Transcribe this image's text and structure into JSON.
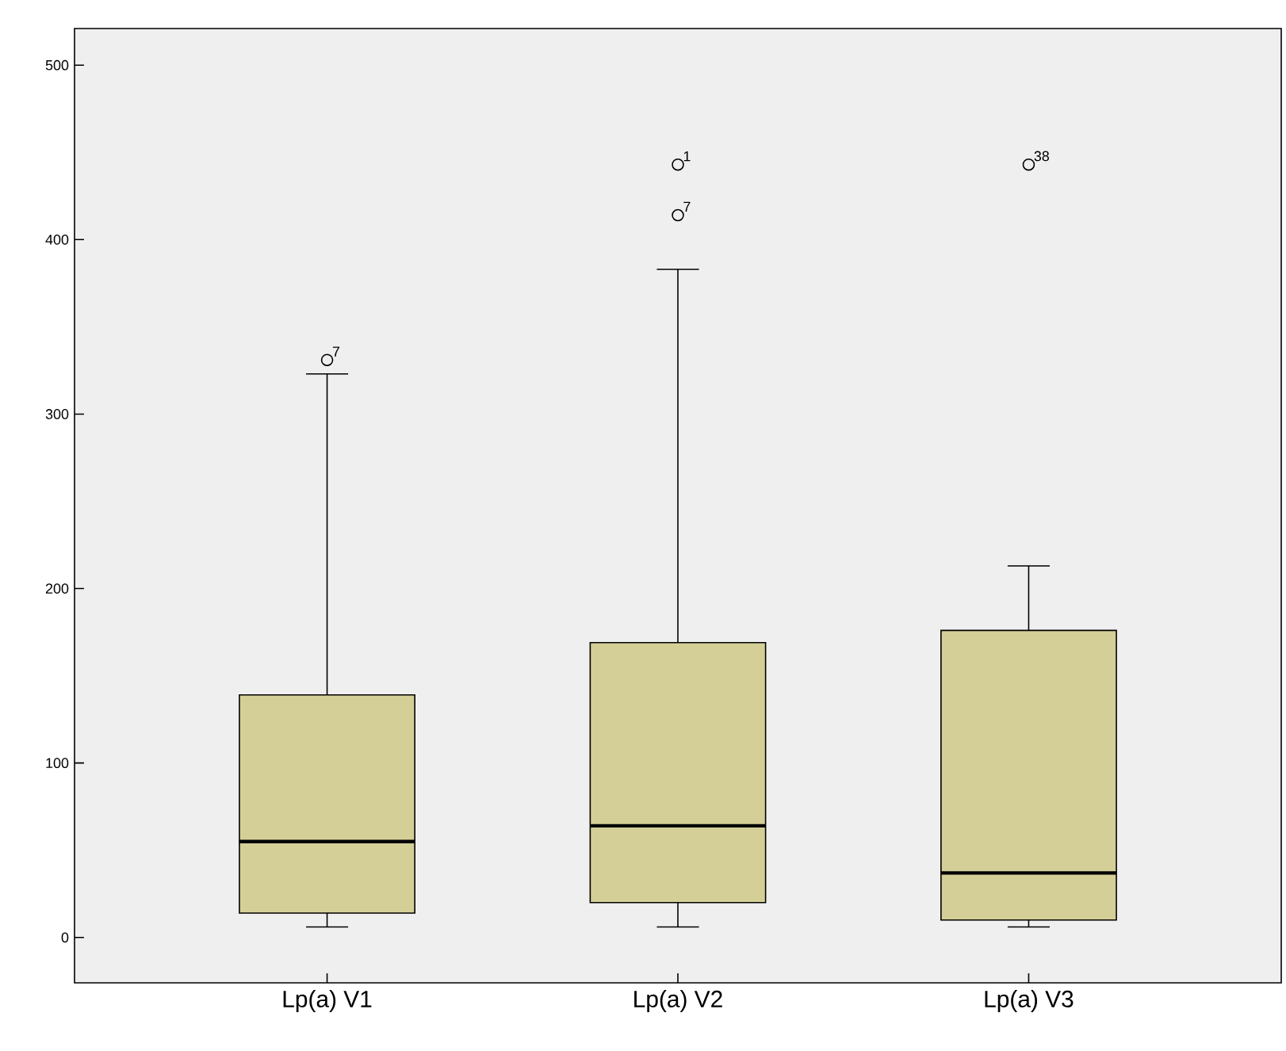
{
  "chart_data": {
    "type": "box",
    "categories": [
      "Lp(a) V1",
      "Lp(a) V2",
      "Lp(a) V3"
    ],
    "color": "#d4cf97",
    "boxes": [
      {
        "low": 6,
        "q1": 14,
        "median": 55,
        "q3": 139,
        "high": 323,
        "outliers": [
          331
        ]
      },
      {
        "low": 6,
        "q1": 20,
        "median": 64,
        "q3": 169,
        "high": 383,
        "outliers": [
          414,
          443
        ]
      },
      {
        "low": 6,
        "q1": 10,
        "median": 37,
        "q3": 176,
        "high": 213,
        "outliers": [
          443
        ]
      }
    ],
    "ylim": [
      -26,
      521
    ],
    "yticks": [
      0,
      100,
      200,
      300,
      400,
      500
    ],
    "annotations": [
      "7",
      "7",
      "1",
      "38"
    ]
  }
}
